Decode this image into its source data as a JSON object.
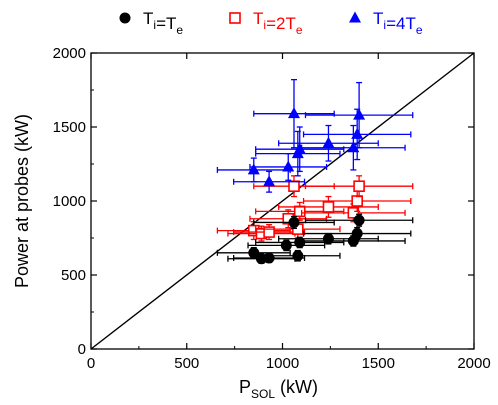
{
  "chart_data": {
    "type": "scatter",
    "xlabel": {
      "main": "P",
      "sub": "SOL",
      "unit": " (kW)"
    },
    "ylabel": "Power at probes (kW)",
    "xlim": [
      0,
      2000
    ],
    "ylim": [
      0,
      2000
    ],
    "xticks": [
      0,
      500,
      1000,
      1500,
      2000
    ],
    "yticks": [
      0,
      500,
      1000,
      1500,
      2000
    ],
    "xtick_labels": [
      "0",
      "500",
      "1000",
      "1500",
      "2000"
    ],
    "ytick_labels": [
      "0",
      "500",
      "1000",
      "1500",
      "2000"
    ],
    "grid": false,
    "legend_position": "top",
    "reference_line": {
      "from": [
        0,
        0
      ],
      "to": [
        2000,
        2000
      ],
      "color": "#000000"
    },
    "series": [
      {
        "legend": [
          {
            "text": "T",
            "sub": "i"
          },
          {
            "text": "=T",
            "sub": "e"
          }
        ],
        "color": "#000000",
        "marker": "circle-filled",
        "points": [
          {
            "x": 850,
            "y": 650,
            "xerr": 190,
            "yerr": 35
          },
          {
            "x": 890,
            "y": 610,
            "xerr": 175,
            "yerr": 30
          },
          {
            "x": 930,
            "y": 615,
            "xerr": 185,
            "yerr": 30
          },
          {
            "x": 1020,
            "y": 700,
            "xerr": 200,
            "yerr": 35
          },
          {
            "x": 1060,
            "y": 855,
            "xerr": 210,
            "yerr": 40
          },
          {
            "x": 1080,
            "y": 630,
            "xerr": 220,
            "yerr": 35
          },
          {
            "x": 1090,
            "y": 720,
            "xerr": 230,
            "yerr": 35
          },
          {
            "x": 1240,
            "y": 745,
            "xerr": 260,
            "yerr": 35
          },
          {
            "x": 1370,
            "y": 730,
            "xerr": 270,
            "yerr": 35
          },
          {
            "x": 1390,
            "y": 780,
            "xerr": 280,
            "yerr": 40
          },
          {
            "x": 1400,
            "y": 870,
            "xerr": 280,
            "yerr": 40
          }
        ]
      },
      {
        "legend": [
          {
            "text": "T",
            "sub": "i"
          },
          {
            "text": "=2T",
            "sub": "e"
          }
        ],
        "color": "#ff0000",
        "marker": "square-open",
        "points": [
          {
            "x": 850,
            "y": 800,
            "xerr": 190,
            "yerr": 60
          },
          {
            "x": 890,
            "y": 780,
            "xerr": 175,
            "yerr": 50
          },
          {
            "x": 930,
            "y": 790,
            "xerr": 185,
            "yerr": 50
          },
          {
            "x": 1030,
            "y": 880,
            "xerr": 200,
            "yerr": 60
          },
          {
            "x": 1060,
            "y": 1100,
            "xerr": 210,
            "yerr": 70
          },
          {
            "x": 1080,
            "y": 810,
            "xerr": 220,
            "yerr": 60
          },
          {
            "x": 1090,
            "y": 930,
            "xerr": 230,
            "yerr": 60
          },
          {
            "x": 1240,
            "y": 960,
            "xerr": 260,
            "yerr": 70
          },
          {
            "x": 1370,
            "y": 920,
            "xerr": 270,
            "yerr": 60
          },
          {
            "x": 1390,
            "y": 1000,
            "xerr": 280,
            "yerr": 70
          },
          {
            "x": 1400,
            "y": 1100,
            "xerr": 280,
            "yerr": 70
          }
        ]
      },
      {
        "legend": [
          {
            "text": "T",
            "sub": "i"
          },
          {
            "text": "=4T",
            "sub": "e"
          }
        ],
        "color": "#0000ff",
        "marker": "triangle-filled",
        "points": [
          {
            "x": 850,
            "y": 1210,
            "xerr": 190,
            "yerr": 80
          },
          {
            "x": 930,
            "y": 1130,
            "xerr": 185,
            "yerr": 70
          },
          {
            "x": 1030,
            "y": 1230,
            "xerr": 200,
            "yerr": 90
          },
          {
            "x": 1060,
            "y": 1590,
            "xerr": 210,
            "yerr": 230
          },
          {
            "x": 1080,
            "y": 1320,
            "xerr": 220,
            "yerr": 150
          },
          {
            "x": 1090,
            "y": 1350,
            "xerr": 230,
            "yerr": 150
          },
          {
            "x": 1240,
            "y": 1390,
            "xerr": 260,
            "yerr": 120
          },
          {
            "x": 1370,
            "y": 1360,
            "xerr": 270,
            "yerr": 150
          },
          {
            "x": 1390,
            "y": 1450,
            "xerr": 280,
            "yerr": 170
          },
          {
            "x": 1400,
            "y": 1580,
            "xerr": 280,
            "yerr": 220
          }
        ]
      }
    ]
  }
}
